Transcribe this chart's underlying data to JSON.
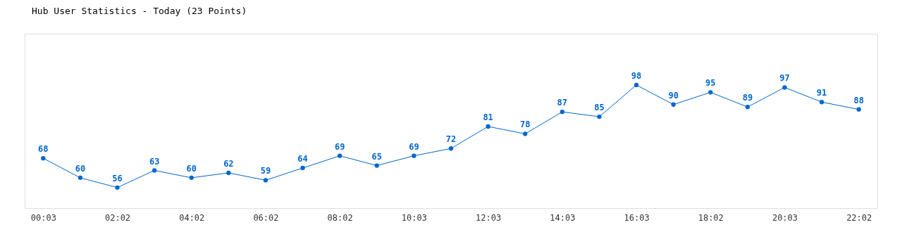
{
  "chart_data": {
    "type": "line",
    "title": "Hub User Statistics - Today (23 Points)",
    "categories": [
      "00:03",
      null,
      "02:02",
      null,
      "04:02",
      null,
      "06:02",
      null,
      "08:02",
      null,
      "10:03",
      null,
      "12:03",
      null,
      "14:03",
      null,
      "16:03",
      null,
      "18:02",
      null,
      "20:03",
      null,
      "22:02"
    ],
    "series": [
      {
        "color": "#0066cc",
        "values": [
          68,
          60,
          56,
          63,
          60,
          62,
          59,
          64,
          69,
          65,
          69,
          72,
          81,
          78,
          87,
          85,
          98,
          90,
          95,
          89,
          97,
          91,
          88
        ]
      }
    ],
    "data_labels": true,
    "marker": "circle",
    "line_style": "solid",
    "grid": false
  }
}
